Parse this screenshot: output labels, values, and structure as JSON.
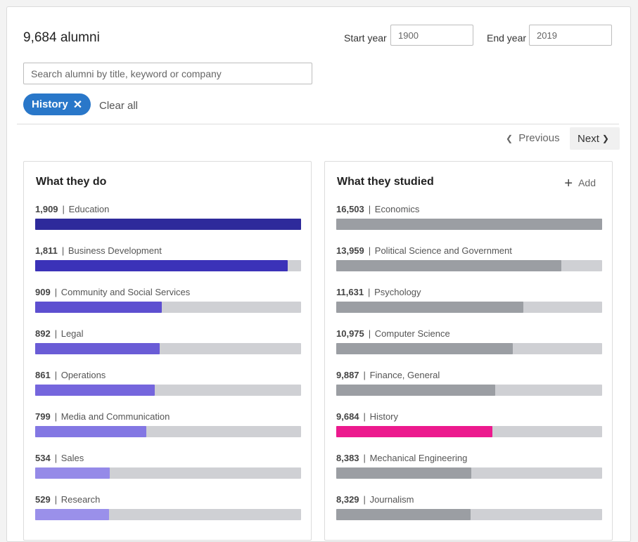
{
  "header": {
    "alumni_count": "9,684 alumni",
    "start_year_label": "Start year",
    "start_year_value": "1900",
    "end_year_label": "End year",
    "end_year_value": "2019",
    "search_placeholder": "Search alumni by title, keyword or company",
    "filter_pill": "History",
    "filter_remove_glyph": "✕",
    "clear_all": "Clear all"
  },
  "pagination": {
    "previous": "Previous",
    "next": "Next",
    "prev_glyph": "❮",
    "next_glyph": "❯"
  },
  "panels": {
    "do": {
      "title": "What they do",
      "max": 1909,
      "items": [
        {
          "count": "1,909",
          "label": "Education",
          "value": 1909,
          "color": "#2e2a9b"
        },
        {
          "count": "1,811",
          "label": "Business Development",
          "value": 1811,
          "color": "#3b32b8"
        },
        {
          "count": "909",
          "label": "Community and Social Services",
          "value": 909,
          "color": "#5d4fd0"
        },
        {
          "count": "892",
          "label": "Legal",
          "value": 892,
          "color": "#6a5cd6"
        },
        {
          "count": "861",
          "label": "Operations",
          "value": 861,
          "color": "#7566dd"
        },
        {
          "count": "799",
          "label": "Media and Communication",
          "value": 799,
          "color": "#8377e3"
        },
        {
          "count": "534",
          "label": "Sales",
          "value": 534,
          "color": "#958ae8"
        },
        {
          "count": "529",
          "label": "Research",
          "value": 529,
          "color": "#9a90ea"
        }
      ]
    },
    "studied": {
      "title": "What they studied",
      "add_label": "Add",
      "add_glyph": "+",
      "max": 16503,
      "items": [
        {
          "count": "16,503",
          "label": "Economics",
          "value": 16503,
          "color": "#9b9ea3"
        },
        {
          "count": "13,959",
          "label": "Political Science and Government",
          "value": 13959,
          "color": "#9b9ea3"
        },
        {
          "count": "11,631",
          "label": "Psychology",
          "value": 11631,
          "color": "#9b9ea3"
        },
        {
          "count": "10,975",
          "label": "Computer Science",
          "value": 10975,
          "color": "#9b9ea3"
        },
        {
          "count": "9,887",
          "label": "Finance, General",
          "value": 9887,
          "color": "#9b9ea3"
        },
        {
          "count": "9,684",
          "label": "History",
          "value": 9684,
          "color": "#ec1a8e"
        },
        {
          "count": "8,383",
          "label": "Mechanical Engineering",
          "value": 8383,
          "color": "#9b9ea3"
        },
        {
          "count": "8,329",
          "label": "Journalism",
          "value": 8329,
          "color": "#9b9ea3"
        }
      ]
    }
  }
}
